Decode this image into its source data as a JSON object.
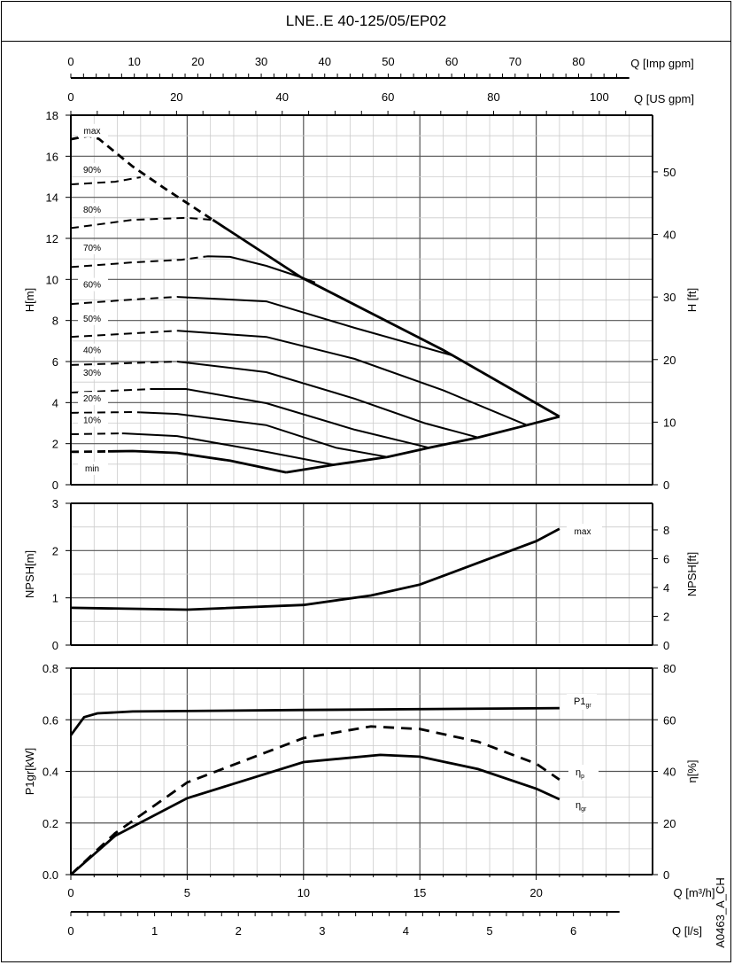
{
  "title": "LNE..E 40-125/05/EP02",
  "code": "A0463_A_CH",
  "chart_data": [
    {
      "type": "line",
      "name": "head",
      "ylabel": "H[m]",
      "ylabel_right": "H [ft]",
      "xlabel": "Q [m³/h]",
      "xlim": [
        0,
        25
      ],
      "ylim": [
        0,
        18
      ],
      "yticks": [
        0,
        2,
        4,
        6,
        8,
        10,
        12,
        14,
        16,
        18
      ],
      "yticks_right": [
        0,
        10,
        20,
        30,
        40,
        50
      ],
      "grid": true,
      "series": [
        {
          "name": "max",
          "dashed_until": 6.1,
          "points": [
            [
              0,
              16.83
            ],
            [
              0.76,
              17.0
            ],
            [
              1.2,
              16.85
            ],
            [
              2.66,
              15.5
            ],
            [
              4.0,
              14.46
            ],
            [
              6.1,
              12.9
            ],
            [
              9.9,
              10.1
            ],
            [
              16,
              6.56
            ],
            [
              21,
              3.32
            ]
          ]
        },
        {
          "name": "90%",
          "dashed_until": 3.0,
          "points": [
            [
              0,
              14.63
            ],
            [
              1.9,
              14.76
            ],
            [
              3.0,
              14.98
            ]
          ]
        },
        {
          "name": "80%",
          "dashed_until": 6.1,
          "points": [
            [
              0,
              12.5
            ],
            [
              2.66,
              12.9
            ],
            [
              4.95,
              13.0
            ],
            [
              6.1,
              12.9
            ]
          ]
        },
        {
          "name": "70%",
          "dashed_until": 5.8,
          "points": [
            [
              0,
              10.6
            ],
            [
              2.66,
              10.83
            ],
            [
              4.76,
              10.96
            ],
            [
              5.9,
              11.13
            ],
            [
              6.85,
              11.1
            ],
            [
              8.4,
              10.66
            ],
            [
              9.9,
              10.1
            ],
            [
              10.5,
              9.85
            ]
          ]
        },
        {
          "name": "60%",
          "dashed_until": 4.6,
          "points": [
            [
              0,
              8.8
            ],
            [
              2.66,
              9.02
            ],
            [
              4.57,
              9.15
            ],
            [
              8.4,
              8.93
            ],
            [
              12.2,
              7.64
            ],
            [
              16.4,
              6.3
            ]
          ]
        },
        {
          "name": "50%",
          "dashed_until": 4.6,
          "points": [
            [
              0,
              7.2
            ],
            [
              4.57,
              7.5
            ],
            [
              8.4,
              7.2
            ],
            [
              12.2,
              6.13
            ],
            [
              16,
              4.6
            ],
            [
              19.6,
              2.9
            ]
          ]
        },
        {
          "name": "40%",
          "dashed_until": 4.6,
          "points": [
            [
              0,
              5.83
            ],
            [
              4.57,
              6.0
            ],
            [
              8.4,
              5.48
            ],
            [
              12.2,
              4.19
            ],
            [
              15.2,
              3.0
            ],
            [
              17.5,
              2.3
            ]
          ]
        },
        {
          "name": "30%",
          "dashed_until": 3.4,
          "points": [
            [
              0,
              4.49
            ],
            [
              3.43,
              4.66
            ],
            [
              4.95,
              4.66
            ],
            [
              8.4,
              3.97
            ],
            [
              12.2,
              2.68
            ],
            [
              15.4,
              1.8
            ]
          ]
        },
        {
          "name": "20%",
          "dashed_until": 3.0,
          "points": [
            [
              0,
              3.5
            ],
            [
              2.66,
              3.54
            ],
            [
              4.57,
              3.45
            ],
            [
              8.4,
              2.9
            ],
            [
              11.4,
              1.8
            ],
            [
              13.6,
              1.35
            ]
          ]
        },
        {
          "name": "10%",
          "dashed_until": 2.2,
          "points": [
            [
              0,
              2.46
            ],
            [
              2.28,
              2.5
            ],
            [
              4.57,
              2.37
            ],
            [
              8.4,
              1.6
            ],
            [
              11.3,
              0.97
            ]
          ]
        },
        {
          "name": "min",
          "dashed_until": 1.6,
          "points": [
            [
              0,
              1.6
            ],
            [
              2.66,
              1.64
            ],
            [
              4.57,
              1.55
            ],
            [
              6.85,
              1.17
            ],
            [
              9.25,
              0.6
            ]
          ]
        },
        {
          "name": "limit",
          "dashed_until": 0,
          "points": [
            [
              9.25,
              0.6
            ],
            [
              11.3,
              0.97
            ],
            [
              13.6,
              1.35
            ],
            [
              15.4,
              1.8
            ],
            [
              17.5,
              2.3
            ],
            [
              19.6,
              2.9
            ],
            [
              21,
              3.32
            ]
          ]
        }
      ]
    },
    {
      "type": "line",
      "name": "npsh",
      "ylabel": "NPSH[m]",
      "ylabel_right": "NPSH[ft]",
      "xlim": [
        0,
        25
      ],
      "ylim": [
        0,
        3
      ],
      "yticks": [
        0,
        1,
        2,
        3
      ],
      "yticks_right": [
        0,
        2,
        4,
        6,
        8
      ],
      "grid": true,
      "series": [
        {
          "name": "max",
          "points": [
            [
              0,
              0.79
            ],
            [
              5,
              0.75
            ],
            [
              10,
              0.85
            ],
            [
              12.9,
              1.05
            ],
            [
              15,
              1.28
            ],
            [
              17.5,
              1.74
            ],
            [
              20,
              2.2
            ],
            [
              21,
              2.46
            ]
          ]
        }
      ]
    },
    {
      "type": "line",
      "name": "power-efficiency",
      "ylabel": "P1gr[kW]",
      "ylabel_right": "η[%]",
      "xlabel": "Q [m³/h]",
      "xlim": [
        0,
        25
      ],
      "ylim": [
        0,
        0.8
      ],
      "ylim_right": [
        0,
        80
      ],
      "yticks": [
        "0.0",
        "0.2",
        "0.4",
        "0.6",
        "0.8"
      ],
      "yticks_right": [
        0,
        20,
        40,
        60,
        80
      ],
      "xticks": [
        0,
        5,
        10,
        15,
        20
      ],
      "grid": true,
      "series": [
        {
          "name": "P1",
          "sub": "gr",
          "axis": "left",
          "dashed": false,
          "points": [
            [
              0,
              0.54
            ],
            [
              0.57,
              0.61
            ],
            [
              1.14,
              0.625
            ],
            [
              2.66,
              0.632
            ],
            [
              10,
              0.638
            ],
            [
              21,
              0.645
            ]
          ]
        },
        {
          "name": "η",
          "sub": "p",
          "axis": "right",
          "dashed": true,
          "points": [
            [
              0,
              0
            ],
            [
              1.9,
              16
            ],
            [
              5,
              35.7
            ],
            [
              10,
              52.9
            ],
            [
              12.9,
              57.4
            ],
            [
              15,
              56.4
            ],
            [
              17.5,
              51.5
            ],
            [
              20,
              43
            ],
            [
              21,
              36.8
            ]
          ]
        },
        {
          "name": "η",
          "sub": "gr",
          "axis": "right",
          "dashed": false,
          "points": [
            [
              0,
              0
            ],
            [
              1.9,
              15
            ],
            [
              5,
              29.6
            ],
            [
              10,
              43.6
            ],
            [
              13.3,
              46.4
            ],
            [
              15,
              45.7
            ],
            [
              17.5,
              40.9
            ],
            [
              20,
              33.3
            ],
            [
              21,
              29.2
            ]
          ]
        }
      ]
    }
  ],
  "axes": {
    "imp_gpm": {
      "label": "Q [Imp gpm]",
      "ticks": [
        0,
        10,
        20,
        30,
        40,
        50,
        60,
        70,
        80
      ],
      "per_m3h": 3.666
    },
    "us_gpm": {
      "label": "Q [US gpm]",
      "ticks": [
        0,
        20,
        40,
        60,
        80,
        100
      ],
      "per_m3h": 4.403
    },
    "ls": {
      "label": "Q [l/s]",
      "ticks": [
        0,
        1,
        2,
        3,
        4,
        5,
        6
      ],
      "per_m3h": 0.27778
    }
  }
}
